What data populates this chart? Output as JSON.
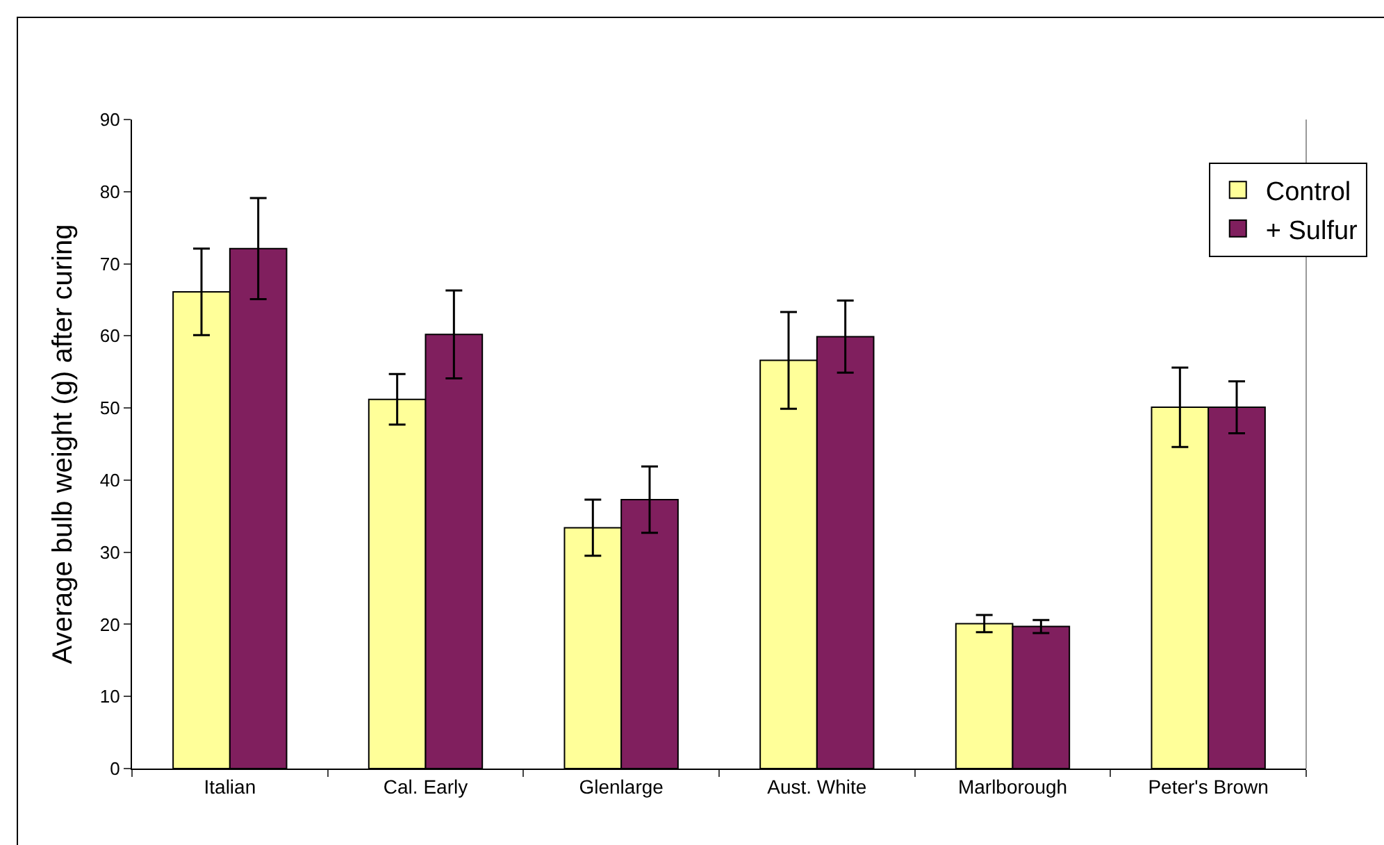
{
  "chart_data": {
    "type": "bar",
    "ylabel": "Average bulb weight (g) after curing",
    "categories": [
      "Italian",
      "Cal. Early",
      "Glenlarge",
      "Aust. White",
      "Marlborough",
      "Peter's Brown"
    ],
    "series": [
      {
        "name": "Control",
        "color": "#ffff99",
        "values": [
          66.1,
          51.2,
          33.4,
          56.6,
          20.1,
          50.1
        ],
        "errors": [
          6,
          3.5,
          3.9,
          6.7,
          1.2,
          5.5
        ]
      },
      {
        "name": "+ Sulfur",
        "color": "#801f5e",
        "values": [
          72.1,
          60.2,
          37.3,
          59.9,
          19.7,
          50.1
        ],
        "errors": [
          7,
          6.1,
          4.6,
          5,
          0.9,
          3.6
        ]
      }
    ],
    "ylim": [
      0,
      90
    ],
    "yticks": [
      0,
      10,
      20,
      30,
      40,
      50,
      60,
      70,
      80,
      90
    ],
    "grid": false,
    "legend": "top right"
  }
}
